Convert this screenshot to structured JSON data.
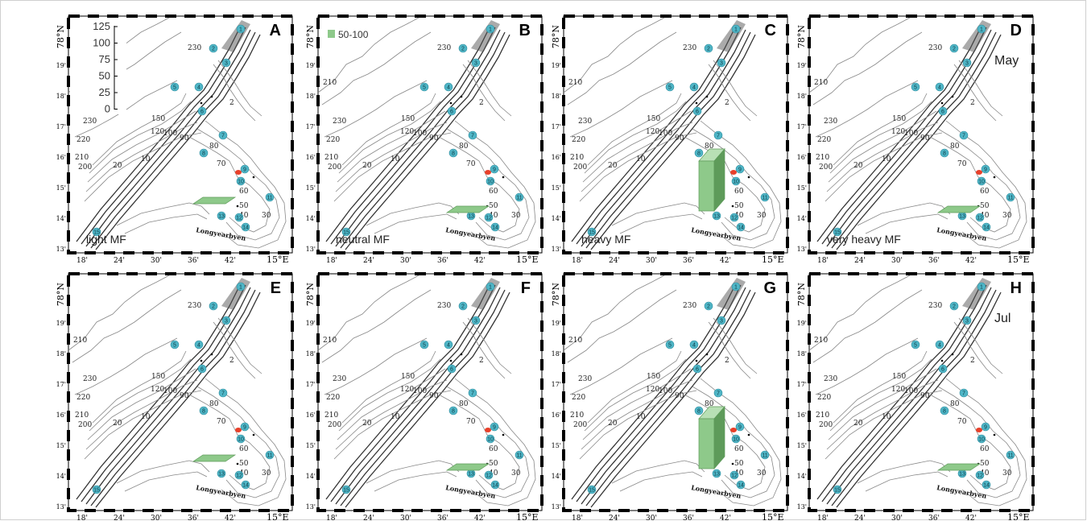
{
  "panels": [
    {
      "id": "A",
      "label": "A",
      "caption": "light MF",
      "side": "",
      "month": "",
      "bar": "flat"
    },
    {
      "id": "B",
      "label": "B",
      "caption": "neutral MF",
      "side": "",
      "month": "",
      "bar": "flat"
    },
    {
      "id": "C",
      "label": "C",
      "caption": "heavy MF",
      "side": "",
      "month": "",
      "bar": "tall"
    },
    {
      "id": "D",
      "label": "D",
      "caption": "very heavy MF",
      "side": "",
      "month": "May",
      "bar": "flat"
    },
    {
      "id": "E",
      "label": "E",
      "caption": "",
      "side": "",
      "month": "",
      "bar": "flat"
    },
    {
      "id": "F",
      "label": "F",
      "caption": "",
      "side": "",
      "month": "",
      "bar": "flat"
    },
    {
      "id": "G",
      "label": "G",
      "caption": "",
      "side": "",
      "month": "",
      "bar": "tall"
    },
    {
      "id": "H",
      "label": "H",
      "caption": "",
      "side": "",
      "month": "Jul",
      "bar": "flat"
    }
  ],
  "scale": {
    "ticks": [
      "125",
      "100",
      "75",
      "50",
      "25",
      "0"
    ]
  },
  "legend": {
    "label": "50-100",
    "color": "#8ec98a"
  },
  "map": {
    "town": "Longyearbyen",
    "lon_ticks": [
      "18'",
      "24'",
      "30'",
      "36'",
      "42'",
      "15°E"
    ],
    "lat_ticks": [
      "13'",
      "14'",
      "15'",
      "16'",
      "17'",
      "18'",
      "19'",
      "78°N"
    ],
    "contours": [
      "230",
      "230",
      "220",
      "210",
      "200",
      "150",
      "120",
      "100",
      "90",
      "80",
      "70",
      "60",
      "50",
      "40",
      "30",
      "20",
      "10",
      "210",
      "2"
    ],
    "stations": [
      "1",
      "2",
      "3",
      "4",
      "5",
      "6",
      "7",
      "8",
      "9",
      "10",
      "11",
      "12",
      "13",
      "14",
      "15"
    ]
  },
  "colors": {
    "bar": "#8ec98a",
    "bar_dark": "#5e9b5a",
    "station": "#4fb5c6",
    "sample": "#e8402a"
  }
}
